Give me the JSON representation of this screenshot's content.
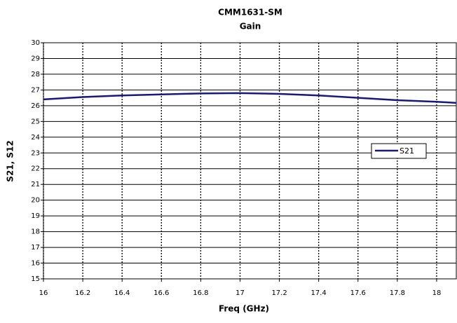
{
  "chart_data": {
    "type": "line",
    "title": "CMM1631-SM",
    "subtitle": "Gain",
    "x_label": "Freq (GHz)",
    "y_label": "S21, S12",
    "x": [
      16,
      16.2,
      16.4,
      16.6,
      16.8,
      17,
      17.2,
      17.4,
      17.6,
      17.8,
      18,
      18.1
    ],
    "series": [
      {
        "name": "S21",
        "color": "#1a1a6e",
        "values": [
          26.4,
          26.55,
          26.65,
          26.72,
          26.78,
          26.8,
          26.75,
          26.65,
          26.5,
          26.35,
          26.25,
          26.18
        ]
      }
    ],
    "xlim": [
      16,
      18.1
    ],
    "xticks": [
      16,
      16.2,
      16.4,
      16.6,
      16.8,
      17,
      17.2,
      17.4,
      17.6,
      17.8,
      18
    ],
    "ylim": [
      15,
      30
    ],
    "yticks": [
      15,
      16,
      17,
      18,
      19,
      20,
      21,
      22,
      23,
      24,
      25,
      26,
      27,
      28,
      29,
      30
    ],
    "grid": true,
    "legend": "right"
  }
}
